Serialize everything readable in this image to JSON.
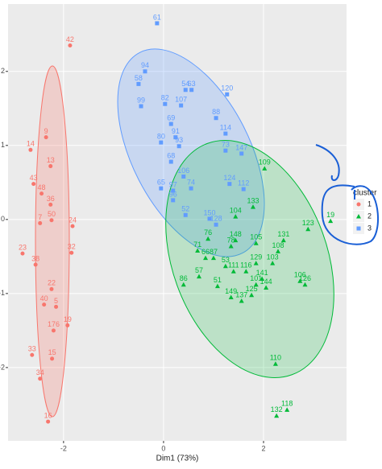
{
  "chart_data": {
    "type": "scatter",
    "x_label": "Dim1 (73%)",
    "legend_title": "cluster",
    "xlim": [
      -3.11,
      3.66
    ],
    "ylim": [
      -2.99,
      2.91
    ],
    "xticks": [
      -2,
      0,
      2
    ],
    "yticks": [
      -2,
      -1,
      0,
      1,
      2
    ],
    "grid": true,
    "series": [
      {
        "name": "1",
        "color": "#F8766D",
        "shape": "circle",
        "labels": [
          "42",
          "9",
          "14",
          "13",
          "43",
          "48",
          "36",
          "7",
          "50",
          "24",
          "23",
          "38",
          "32",
          "22",
          "40",
          "5",
          "19",
          "176",
          "33",
          "15",
          "34",
          "16"
        ],
        "x": [
          -1.87,
          -2.35,
          -2.66,
          -2.26,
          -2.6,
          -2.44,
          -2.26,
          -2.47,
          -2.24,
          -1.82,
          -2.82,
          -2.56,
          -1.84,
          -2.24,
          -2.39,
          -2.15,
          -1.92,
          -2.2,
          -2.63,
          -2.23,
          -2.47,
          -2.31
        ],
        "values": [
          2.35,
          1.11,
          0.94,
          0.72,
          0.48,
          0.35,
          0.2,
          -0.05,
          -0.01,
          -0.09,
          -0.46,
          -0.61,
          -0.45,
          -0.94,
          -1.15,
          -1.18,
          -1.43,
          -1.5,
          -1.83,
          -1.88,
          -2.15,
          -2.73
        ]
      },
      {
        "name": "2",
        "color": "#00BA38",
        "shape": "triangle",
        "labels": [
          "109",
          "19",
          "133",
          "104",
          "131",
          "123",
          "76",
          "148",
          "78",
          "105",
          "108",
          "71",
          "87",
          "66",
          "57",
          "53",
          "111",
          "103",
          "116",
          "101",
          "144",
          "86",
          "51",
          "106",
          "126",
          "149",
          "125",
          "137",
          "110",
          "118",
          "132",
          "141",
          "129"
        ],
        "x": [
          2.02,
          3.34,
          1.79,
          1.44,
          2.4,
          2.89,
          0.89,
          1.44,
          1.35,
          1.85,
          2.29,
          0.68,
          1.0,
          0.84,
          0.71,
          1.24,
          1.4,
          2.18,
          1.65,
          1.85,
          2.05,
          0.4,
          1.08,
          2.73,
          2.83,
          1.35,
          1.76,
          1.56,
          2.24,
          2.47,
          2.26,
          1.97,
          1.85
        ],
        "values": [
          0.69,
          -0.02,
          0.17,
          0.04,
          -0.28,
          -0.13,
          -0.26,
          -0.28,
          -0.36,
          -0.32,
          -0.43,
          -0.42,
          -0.52,
          -0.52,
          -0.77,
          -0.63,
          -0.7,
          -0.59,
          -0.7,
          -0.88,
          -0.92,
          -0.88,
          -0.9,
          -0.83,
          -0.88,
          -1.05,
          -1.02,
          -1.1,
          -1.95,
          -2.57,
          -2.65,
          -0.8,
          -0.59
        ]
      },
      {
        "name": "3",
        "color": "#619CFF",
        "shape": "square",
        "labels": [
          "61",
          "94",
          "58",
          "99",
          "54",
          "63",
          "82",
          "107",
          "120",
          "88",
          "114",
          "69",
          "91",
          "80",
          "73",
          "147",
          "93",
          "68",
          "65",
          "106",
          "97",
          "74",
          "96",
          "52",
          "112",
          "124",
          "150",
          "128"
        ],
        "x": [
          -0.13,
          -0.37,
          -0.5,
          -0.45,
          0.44,
          0.56,
          0.03,
          0.35,
          1.27,
          1.05,
          1.24,
          0.15,
          0.24,
          -0.05,
          1.24,
          1.56,
          0.31,
          0.15,
          -0.05,
          0.4,
          0.19,
          0.55,
          0.19,
          0.44,
          1.6,
          1.32,
          0.92,
          1.05
        ],
        "values": [
          2.65,
          2.0,
          1.83,
          1.53,
          1.75,
          1.75,
          1.56,
          1.54,
          1.69,
          1.37,
          1.16,
          1.29,
          1.11,
          1.04,
          0.93,
          0.89,
          0.99,
          0.78,
          0.42,
          0.58,
          0.39,
          0.42,
          0.26,
          0.06,
          0.41,
          0.48,
          0.01,
          -0.07
        ]
      }
    ]
  }
}
